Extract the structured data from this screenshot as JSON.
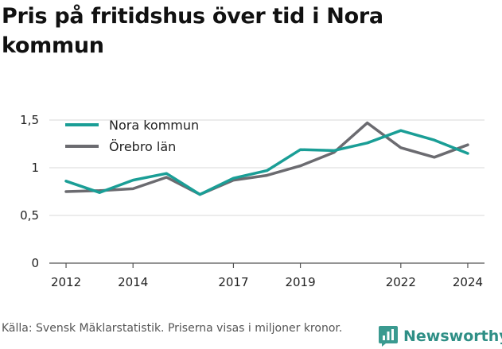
{
  "title": "Pris på fritidshus över tid i Nora kommun",
  "source": "Källa: Svensk Mäklarstatistik. Priserna visas i miljoner kronor.",
  "brand": {
    "name": "Newsworthy",
    "logo_icon": "bar-chart-speech-bubble-icon",
    "color": "#3a9a90"
  },
  "chart_data": {
    "type": "line",
    "x": [
      2012,
      2013,
      2014,
      2015,
      2016,
      2017,
      2018,
      2019,
      2020,
      2021,
      2022,
      2023,
      2024
    ],
    "xticks": [
      "2012",
      "2014",
      "2017",
      "2019",
      "2022",
      "2024"
    ],
    "xlim": [
      2011.5,
      2024.5
    ],
    "ylim": [
      0,
      1.5
    ],
    "yticks": [
      "0",
      "0,5",
      "1",
      "1,5"
    ],
    "grid": true,
    "legend_position": "top-left",
    "series": [
      {
        "name": "Nora kommun",
        "color": "#1a9e96",
        "values": [
          0.86,
          0.74,
          0.87,
          0.94,
          0.72,
          0.89,
          0.97,
          1.19,
          1.18,
          1.26,
          1.39,
          1.29,
          1.15
        ]
      },
      {
        "name": "Örebro län",
        "color": "#6b6b70",
        "values": [
          0.75,
          0.76,
          0.78,
          0.9,
          0.72,
          0.87,
          0.92,
          1.02,
          1.16,
          1.47,
          1.21,
          1.11,
          1.24
        ]
      }
    ]
  }
}
